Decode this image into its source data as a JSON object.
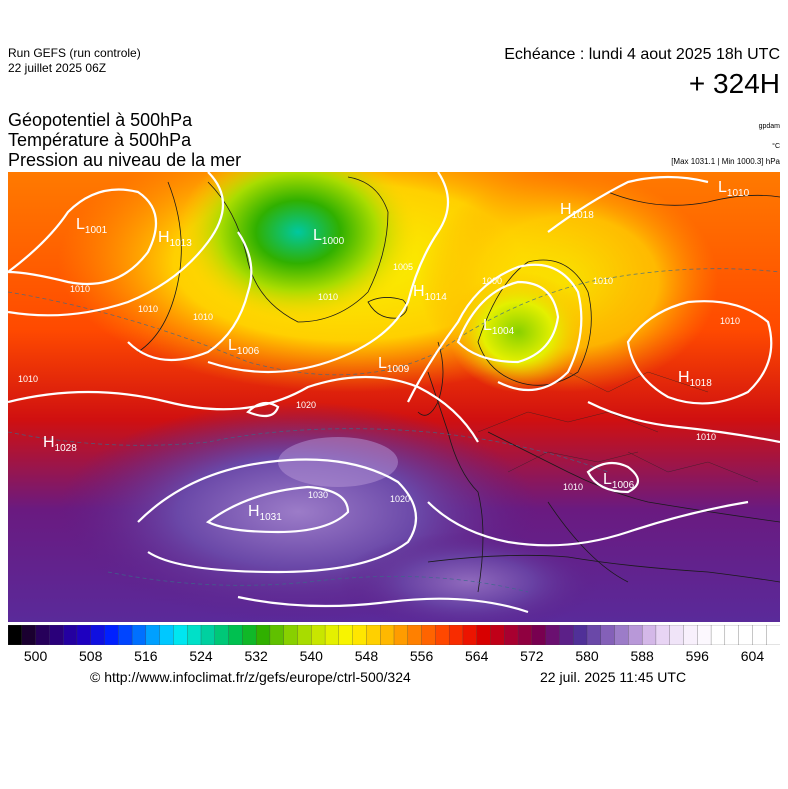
{
  "header": {
    "run_title": "Run GEFS (run controle)",
    "run_date": "22 juillet 2025 06Z",
    "valid_time": "Echéance : lundi 4 aout 2025 18h UTC",
    "lead_time": "+ 324H"
  },
  "legend": {
    "line1": "Géopotentiel à 500hPa",
    "line2": "Température à 500hPa",
    "line3": "Pression au niveau de la mer",
    "unit_geopotential": "gpdam",
    "unit_temperature": "°C",
    "max_min": "[Max 1031.1 | Min 1000.3] hPa"
  },
  "pressure_centers": [
    {
      "type": "L",
      "value": "1001",
      "place": "west-atlantic-north"
    },
    {
      "type": "H",
      "value": "1013",
      "place": "south-greenland"
    },
    {
      "type": "L",
      "value": "1000",
      "place": "greenland"
    },
    {
      "type": "H",
      "value": "1018",
      "place": "norwegian-sea"
    },
    {
      "type": "L",
      "value": "1010",
      "place": "north-russia"
    },
    {
      "type": "H",
      "value": "1014",
      "place": "north-sea"
    },
    {
      "type": "L",
      "value": "1006",
      "place": "iceland-south"
    },
    {
      "type": "L",
      "value": "1009",
      "place": "faroes"
    },
    {
      "type": "L",
      "value": "1004",
      "place": "scandinavia"
    },
    {
      "type": "H",
      "value": "1018",
      "place": "russia"
    },
    {
      "type": "H",
      "value": "1028",
      "place": "mid-atlantic"
    },
    {
      "type": "H",
      "value": "1031",
      "place": "azores"
    },
    {
      "type": "L",
      "value": "1006",
      "place": "black-sea"
    }
  ],
  "isobar_labels": [
    "1010",
    "1010",
    "1010",
    "1010",
    "1005",
    "1010",
    "1000",
    "1010",
    "1010",
    "1010",
    "1020",
    "1030",
    "1020",
    "1010"
  ],
  "colorbar": {
    "tick_labels": [
      "500",
      "508",
      "516",
      "524",
      "532",
      "540",
      "548",
      "556",
      "564",
      "572",
      "580",
      "588",
      "596",
      "604"
    ],
    "min": 496,
    "max": 608,
    "step": 2,
    "colors": [
      "#000000",
      "#1a0030",
      "#26005a",
      "#2a007a",
      "#2400a0",
      "#1e00c0",
      "#1010e0",
      "#0020ff",
      "#0045ff",
      "#0070ff",
      "#00a0ff",
      "#00c8ff",
      "#00e6f0",
      "#00e0c8",
      "#00d0a0",
      "#00c878",
      "#00c050",
      "#10b828",
      "#30b000",
      "#60c000",
      "#88d000",
      "#a8dc00",
      "#c8e600",
      "#e4f000",
      "#f8f400",
      "#ffe600",
      "#ffd000",
      "#ffb800",
      "#ff9c00",
      "#ff8000",
      "#ff6400",
      "#ff4800",
      "#f82c00",
      "#ec1400",
      "#d80000",
      "#c00018",
      "#a80030",
      "#900040",
      "#780050",
      "#6a1070",
      "#5c2088",
      "#503098",
      "#6a48a8",
      "#8460b8",
      "#9c7cc8",
      "#b898d8",
      "#d4b8e8",
      "#e8d4f4",
      "#f0e4f8",
      "#f8f0fc",
      "#fcf8fe",
      "#ffffff",
      "#ffffff",
      "#ffffff",
      "#ffffff",
      "#ffffff"
    ]
  },
  "footer": {
    "source": "© http://www.infoclimat.fr/z/gefs/europe/ctrl-500/324",
    "generated": "22 juil. 2025 11:45 UTC"
  }
}
